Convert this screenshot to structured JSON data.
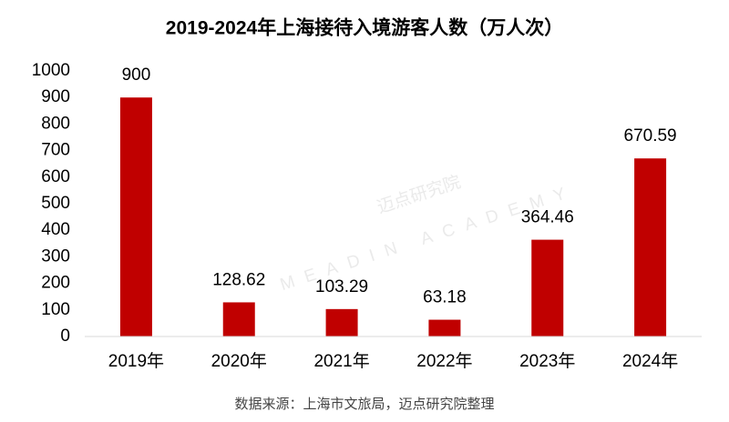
{
  "chart_data": {
    "type": "bar",
    "title": "2019-2024年上海接待入境游客人数（万人次）",
    "categories": [
      "2019年",
      "2020年",
      "2021年",
      "2022年",
      "2023年",
      "2024年"
    ],
    "values": [
      900,
      128.62,
      103.29,
      63.18,
      364.46,
      670.59
    ],
    "color": "#c00000",
    "ylim": [
      0,
      1000
    ],
    "yticks": [
      0,
      100,
      200,
      300,
      400,
      500,
      600,
      700,
      800,
      900,
      1000
    ],
    "grid": false,
    "source": "数据来源：上海市文旅局，迈点研究院整理",
    "watermark": [
      "迈点研究院",
      "MEADIN ACADEMY"
    ]
  }
}
